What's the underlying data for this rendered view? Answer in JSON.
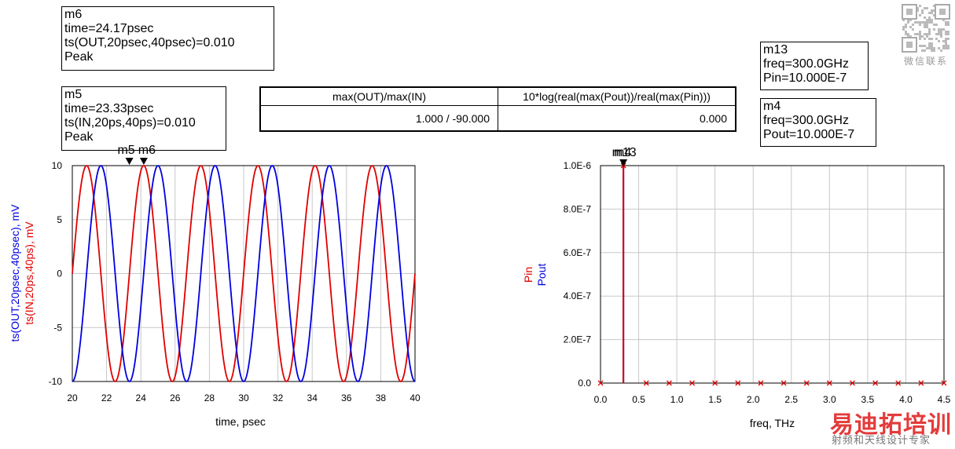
{
  "markers": {
    "m6": {
      "line1": "m6",
      "line2": "time=24.17psec",
      "line3": "ts(OUT,20psec,40psec)=0.010",
      "line4": "Peak"
    },
    "m5": {
      "line1": "m5",
      "line2": "time=23.33psec",
      "line3": "ts(IN,20ps,40ps)=0.010",
      "line4": "Peak"
    },
    "m13": {
      "line1": "m13",
      "line2": "freq=300.0GHz",
      "line3": "Pin=10.000E-7"
    },
    "m4": {
      "line1": "m4",
      "line2": "freq=300.0GHz",
      "line3": "Pout=10.000E-7"
    }
  },
  "equation_table": {
    "col1_header": "max(OUT)/max(IN)",
    "col2_header": "10*log(real(max(Pout))/real(max(Pin)))",
    "col1_value": "1.000 / -90.000",
    "col2_value": "0.000"
  },
  "watermark": {
    "qr_caption": "微信联系",
    "brand": "易迪拓培训",
    "tagline": "射频和天线设计专家"
  },
  "chart_data": [
    {
      "type": "line",
      "xlabel": "time, psec",
      "ylabel_blue": "ts(OUT,20psec,40psec), mV",
      "ylabel_red": "ts(IN,20ps,40ps), mV",
      "xlim": [
        20,
        40
      ],
      "ylim": [
        -10,
        10
      ],
      "xticks": [
        20,
        22,
        24,
        26,
        28,
        30,
        32,
        34,
        36,
        38,
        40
      ],
      "yticks": [
        10,
        5,
        0,
        -5,
        -10
      ],
      "marker_labels": [
        "m5",
        "m6"
      ],
      "marker_times": [
        23.33,
        24.17
      ],
      "series": [
        {
          "name": "ts(IN,20ps,40ps)",
          "color": "#e00000",
          "amplitude": 10,
          "freq_thz": 0.3,
          "phase_deg": 0
        },
        {
          "name": "ts(OUT,20psec,40psec)",
          "color": "#0000e0",
          "amplitude": 10,
          "freq_thz": 0.3,
          "phase_deg": -90
        }
      ]
    },
    {
      "type": "stem",
      "xlabel": "freq, THz",
      "ylabel_red": "Pin",
      "ylabel_blue": "Pout",
      "xlim": [
        0,
        4.5
      ],
      "ylim": [
        0,
        1e-06
      ],
      "xticks": [
        "0.0",
        "0.5",
        "1.0",
        "1.5",
        "2.0",
        "2.5",
        "3.0",
        "3.5",
        "4.0",
        "4.5"
      ],
      "yticks": [
        "1.0E-6",
        "8.0E-7",
        "6.0E-7",
        "4.0E-7",
        "2.0E-7",
        "0.0"
      ],
      "marker_label": "m4 / m13",
      "marker_label_display": "m13",
      "x": [
        0,
        0.3,
        0.6,
        0.9,
        1.2,
        1.5,
        1.8,
        2.1,
        2.4,
        2.7,
        3.0,
        3.3,
        3.6,
        3.9,
        4.2,
        4.5
      ],
      "Pin": [
        0,
        1e-06,
        0,
        0,
        0,
        0,
        0,
        0,
        0,
        0,
        0,
        0,
        0,
        0,
        0,
        0
      ],
      "Pout": [
        0,
        1e-06,
        0,
        0,
        0,
        0,
        0,
        0,
        0,
        0,
        0,
        0,
        0,
        0,
        0,
        0
      ]
    }
  ]
}
